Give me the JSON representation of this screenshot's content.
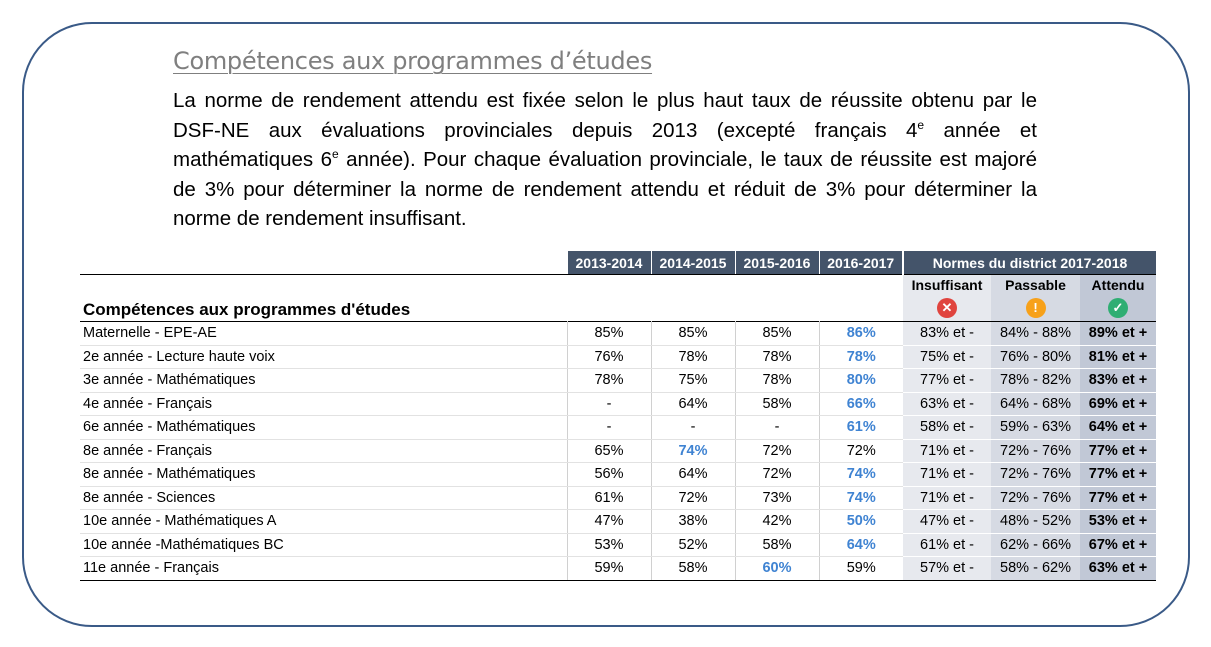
{
  "heading": "Compétences aux programmes d’études",
  "paragraph": {
    "part1": "La norme de rendement attendu est fixée selon le plus haut taux de réussite obtenu par le DSF-NE aux évaluations provinciales depuis 2013 (excepté français 4",
    "sup1": "e",
    "part2": " année et mathématiques 6",
    "sup2": "e",
    "part3": " année).  Pour chaque évaluation provinciale, le taux de réussite est majoré de 3% pour déterminer la norme de rendement attendu et réduit de 3% pour déterminer la norme de rendement insuffisant."
  },
  "table": {
    "years": [
      "2013-2014",
      "2014-2015",
      "2015-2016",
      "2016-2017"
    ],
    "norms_header": "Normes du district 2017-2018",
    "row_header": "Compétences aux programmes d'études",
    "norm_cols": [
      {
        "label": "Insuffisant",
        "icon": "x-circle-icon",
        "color": "#e0443e",
        "glyph": "✕"
      },
      {
        "label": "Passable",
        "icon": "exclamation-circle-icon",
        "color": "#f7a11a",
        "glyph": "!"
      },
      {
        "label": "Attendu",
        "icon": "check-circle-icon",
        "color": "#2fae73",
        "glyph": "✓"
      }
    ],
    "highlight_color": "#3f83d2",
    "rows": [
      {
        "name": "Maternelle - EPE-AE",
        "values": [
          "85%",
          "85%",
          "85%",
          "86%"
        ],
        "hl": 3,
        "ins": "83% et -",
        "pas": "84% - 88%",
        "att": "89% et +"
      },
      {
        "name": "2e année - Lecture haute voix",
        "values": [
          "76%",
          "78%",
          "78%",
          "78%"
        ],
        "hl": 3,
        "ins": "75% et -",
        "pas": "76% - 80%",
        "att": "81% et +"
      },
      {
        "name": "3e année - Mathématiques",
        "values": [
          "78%",
          "75%",
          "78%",
          "80%"
        ],
        "hl": 3,
        "ins": "77% et -",
        "pas": "78% - 82%",
        "att": "83% et +"
      },
      {
        "name": "4e année - Français",
        "values": [
          "-",
          "64%",
          "58%",
          "66%"
        ],
        "hl": 3,
        "ins": "63% et -",
        "pas": "64% - 68%",
        "att": "69% et +"
      },
      {
        "name": "6e année - Mathématiques",
        "values": [
          "-",
          "-",
          "-",
          "61%"
        ],
        "hl": 3,
        "ins": "58% et -",
        "pas": "59% - 63%",
        "att": "64% et +"
      },
      {
        "name": "8e année - Français",
        "values": [
          "65%",
          "74%",
          "72%",
          "72%"
        ],
        "hl": 1,
        "ins": "71% et -",
        "pas": "72% - 76%",
        "att": "77% et +"
      },
      {
        "name": "8e année - Mathématiques",
        "values": [
          "56%",
          "64%",
          "72%",
          "74%"
        ],
        "hl": 3,
        "ins": "71% et -",
        "pas": "72% - 76%",
        "att": "77% et +"
      },
      {
        "name": "8e année - Sciences",
        "values": [
          "61%",
          "72%",
          "73%",
          "74%"
        ],
        "hl": 3,
        "ins": "71% et -",
        "pas": "72% - 76%",
        "att": "77% et +"
      },
      {
        "name": "10e année - Mathématiques A",
        "values": [
          "47%",
          "38%",
          "42%",
          "50%"
        ],
        "hl": 3,
        "ins": "47% et -",
        "pas": "48% - 52%",
        "att": "53% et +"
      },
      {
        "name": "10e année -Mathématiques BC",
        "values": [
          "53%",
          "52%",
          "58%",
          "64%"
        ],
        "hl": 3,
        "ins": "61% et -",
        "pas": "62% - 66%",
        "att": "67% et +"
      },
      {
        "name": "11e année - Français",
        "values": [
          "59%",
          "58%",
          "60%",
          "59%"
        ],
        "hl": 2,
        "ins": "57% et -",
        "pas": "58% - 62%",
        "att": "63% et +"
      }
    ]
  }
}
